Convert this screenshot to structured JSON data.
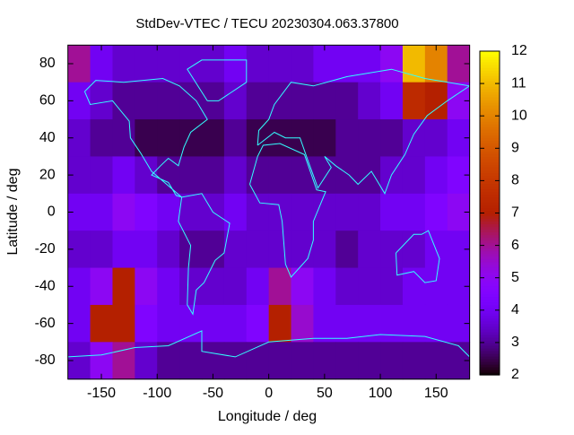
{
  "chart_data": {
    "type": "heatmap",
    "title": "StdDev-VTEC / TECU 20230304.063.37800",
    "x_label": "Longitude / deg",
    "y_label": "Latitude / deg",
    "xlim": [
      -180,
      180
    ],
    "ylim": [
      -90,
      90
    ],
    "xticks": [
      -150,
      -100,
      -50,
      0,
      50,
      100,
      150
    ],
    "yticks": [
      -80,
      -60,
      -40,
      -20,
      0,
      20,
      40,
      60,
      80
    ],
    "zlim": [
      2,
      12
    ],
    "zticks": [
      2,
      3,
      4,
      5,
      6,
      7,
      8,
      9,
      10,
      11,
      12
    ],
    "colormap": "gnuplot",
    "x": [
      -170,
      -150,
      -130,
      -110,
      -90,
      -70,
      -50,
      -30,
      -10,
      10,
      30,
      50,
      70,
      90,
      110,
      130,
      150,
      170
    ],
    "y": [
      80,
      60,
      40,
      20,
      0,
      -20,
      -40,
      -60,
      -80
    ],
    "values": [
      [
        6,
        4,
        3.5,
        3.5,
        3.5,
        3.5,
        3.5,
        4,
        3.5,
        3.5,
        3.5,
        4,
        4,
        4,
        5,
        11,
        10,
        6
      ],
      [
        4,
        3.5,
        3,
        3,
        3,
        3,
        3,
        3.5,
        3,
        3,
        3,
        3,
        3,
        3.5,
        4,
        7.5,
        7,
        5
      ],
      [
        3.5,
        3,
        3,
        2.5,
        2.5,
        2.5,
        2.5,
        3,
        2.5,
        2.5,
        2.5,
        2.5,
        3,
        3,
        3,
        3.5,
        3.5,
        4
      ],
      [
        3.5,
        3.5,
        4,
        3.5,
        3,
        3,
        3,
        3.5,
        3,
        3,
        3,
        3,
        3,
        3,
        3.5,
        3.5,
        4,
        4.5
      ],
      [
        4,
        4,
        5,
        4.5,
        4,
        3.5,
        3.5,
        4,
        3.5,
        3.5,
        3.5,
        3.5,
        3.5,
        3.5,
        4,
        4,
        4.5,
        5
      ],
      [
        3.5,
        3.5,
        4,
        4,
        3.5,
        3,
        3,
        3.5,
        3.5,
        3.5,
        3.5,
        3.5,
        3,
        3.5,
        3.5,
        3.5,
        4,
        4
      ],
      [
        4,
        5,
        7,
        5,
        4,
        3.5,
        3.5,
        3.5,
        4,
        6,
        5,
        4,
        3.5,
        3.5,
        3.5,
        4,
        4,
        4
      ],
      [
        4,
        7,
        7,
        4.5,
        4,
        4,
        4,
        4,
        4.5,
        7,
        5.5,
        4,
        4,
        4,
        4,
        4,
        4,
        4
      ],
      [
        3.5,
        5,
        6,
        3.5,
        3,
        3,
        3,
        3,
        3,
        3,
        3,
        3,
        3,
        3,
        3,
        3,
        3,
        3
      ]
    ]
  }
}
